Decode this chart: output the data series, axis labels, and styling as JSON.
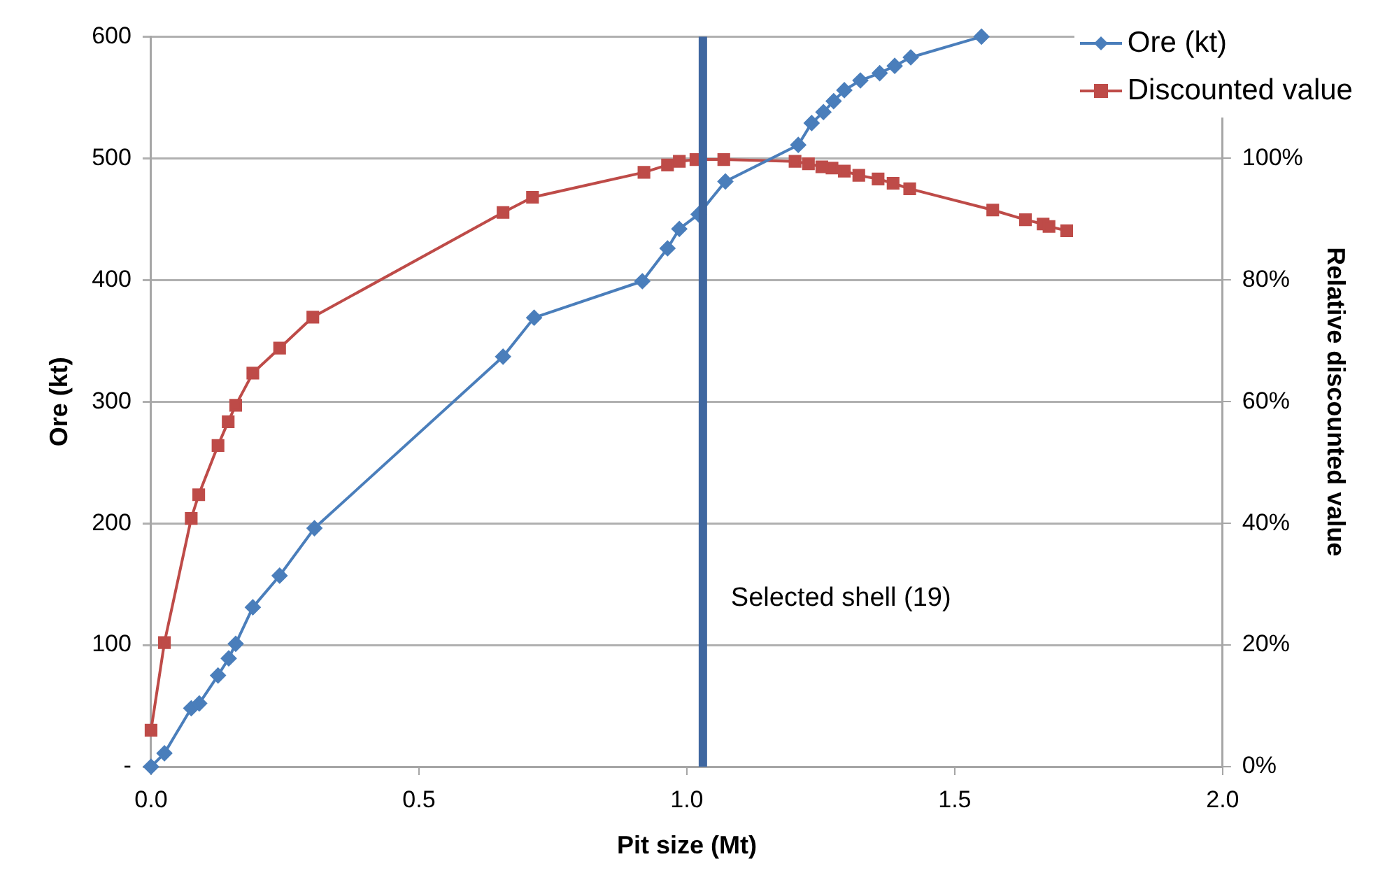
{
  "chart_data": {
    "type": "line",
    "xlabel": "Pit size (Mt)",
    "ylabel": "Ore (kt)",
    "y2label": "Relative discounted value",
    "xlim": [
      0,
      2
    ],
    "xticks": [
      {
        "value": 0,
        "label": "0.0"
      },
      {
        "value": 0.5,
        "label": "0.5"
      },
      {
        "value": 1,
        "label": "1.0"
      },
      {
        "value": 1.5,
        "label": "1.5"
      },
      {
        "value": 2,
        "label": "2.0"
      }
    ],
    "ylim": [
      0,
      600
    ],
    "yticks": [
      {
        "value": 0,
        "label": "-"
      },
      100,
      200,
      300,
      400,
      500,
      600
    ],
    "y2lim": [
      0,
      120
    ],
    "y2ticks": [
      {
        "value": 0,
        "label": "0%"
      },
      {
        "value": 20,
        "label": "20%"
      },
      {
        "value": 40,
        "label": "40%"
      },
      {
        "value": 60,
        "label": "60%"
      },
      {
        "value": 80,
        "label": "80%"
      },
      {
        "value": 100,
        "label": "100%"
      }
    ],
    "grid": "y",
    "legend": "top right",
    "line_style": "solid",
    "series": [
      {
        "name": "Ore (kt)",
        "color": "#4a7ebb",
        "marker": "diamond",
        "axis": "y",
        "x": [
          0,
          0.025,
          0.075,
          0.09,
          0.125,
          0.145,
          0.158,
          0.19,
          0.24,
          0.305,
          0.657,
          0.715,
          0.917,
          0.964,
          0.986,
          1.022,
          1.072,
          1.208,
          1.233,
          1.255,
          1.274,
          1.294,
          1.324,
          1.36,
          1.388,
          1.418,
          1.55
        ],
        "values": [
          0,
          11,
          48,
          52,
          75,
          89,
          101,
          131,
          157,
          196,
          337,
          369,
          399,
          426,
          442,
          454,
          481,
          511,
          529,
          538,
          547,
          556,
          564,
          570,
          576,
          583,
          600
        ]
      },
      {
        "name": "Discounted value",
        "color": "#be4b48",
        "marker": "square",
        "axis": "y2",
        "x": [
          0,
          0.025,
          0.075,
          0.089,
          0.125,
          0.144,
          0.158,
          0.19,
          0.24,
          0.302,
          0.657,
          0.712,
          0.92,
          0.964,
          0.986,
          1.017,
          1.069,
          1.202,
          1.227,
          1.252,
          1.271,
          1.294,
          1.321,
          1.357,
          1.385,
          1.416,
          1.571,
          1.632,
          1.665,
          1.676,
          1.709
        ],
        "values": [
          6,
          20.4,
          40.8,
          44.7,
          52.8,
          56.7,
          59.4,
          64.7,
          68.8,
          73.9,
          91.1,
          93.6,
          97.7,
          98.9,
          99.5,
          99.8,
          99.8,
          99.5,
          99.1,
          98.6,
          98.4,
          97.9,
          97.2,
          96.6,
          95.9,
          95.0,
          91.5,
          89.9,
          89.2,
          88.8,
          88.1
        ]
      }
    ],
    "ref_lines": [
      {
        "axis": "x",
        "value": 1.03,
        "label": "Selected shell (19)",
        "color": "#3f67a0",
        "line_style": "solid"
      }
    ]
  }
}
